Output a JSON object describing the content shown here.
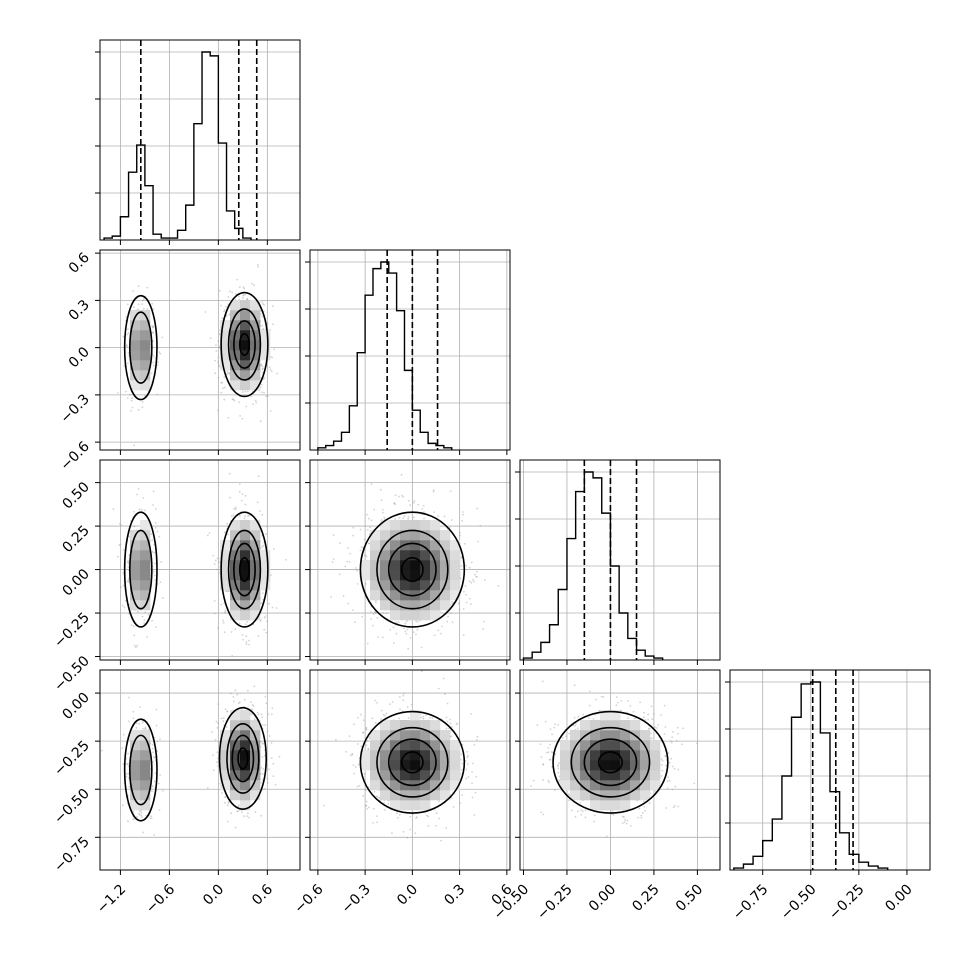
{
  "chart_data": {
    "type": "corner",
    "grid": true,
    "scatter_color": "#9e9e9e",
    "line_color": "#000000",
    "params": [
      {
        "range": [
          -1.45,
          1.0
        ],
        "ticks": [
          -1.2,
          -0.6,
          0.0,
          0.6
        ],
        "tick_labels": [
          "−1.2",
          "−0.6",
          "0.0",
          "0.6"
        ]
      },
      {
        "range": [
          -0.65,
          0.62
        ],
        "ticks": [
          -0.6,
          -0.3,
          0.0,
          0.3,
          0.6
        ],
        "tick_labels": [
          "−0.6",
          "−0.3",
          "0.0",
          "0.3",
          "0.6"
        ]
      },
      {
        "range": [
          -0.52,
          0.63
        ],
        "ticks": [
          -0.5,
          -0.25,
          0.0,
          0.25,
          0.5
        ],
        "tick_labels": [
          "−0.50",
          "−0.25",
          "0.00",
          "0.25",
          "0.50"
        ]
      },
      {
        "range": [
          -0.92,
          0.12
        ],
        "ticks": [
          -0.75,
          -0.5,
          -0.25,
          0.0
        ],
        "tick_labels": [
          "−0.75",
          "−0.50",
          "−0.25",
          "0.00"
        ]
      }
    ],
    "histograms": [
      {
        "edges_min": -1.4,
        "bin_width": 0.1,
        "counts": [
          1,
          2,
          12,
          35,
          49,
          28,
          3,
          1,
          1,
          5,
          18,
          60,
          97,
          95,
          50,
          15,
          6,
          1
        ],
        "quantile_lines": [
          -0.95,
          0.25,
          0.47
        ]
      },
      {
        "edges_min": -0.6,
        "bin_width": 0.05,
        "counts": [
          1,
          2,
          4,
          8,
          20,
          44,
          70,
          82,
          85,
          80,
          63,
          36,
          18,
          8,
          3,
          2,
          1
        ],
        "quantile_lines": [
          -0.16,
          0.0,
          0.16
        ]
      },
      {
        "edges_min": -0.5,
        "bin_width": 0.05,
        "counts": [
          1,
          4,
          9,
          18,
          36,
          62,
          86,
          96,
          93,
          75,
          48,
          24,
          11,
          5,
          2,
          1
        ],
        "quantile_lines": [
          -0.15,
          0.0,
          0.15
        ]
      },
      {
        "edges_min": -0.9,
        "bin_width": 0.05,
        "counts": [
          1,
          3,
          7,
          15,
          26,
          48,
          78,
          95,
          96,
          70,
          40,
          19,
          8,
          4,
          2,
          1
        ],
        "quantile_lines": [
          -0.49,
          -0.37,
          -0.28
        ]
      }
    ],
    "joint_clusters": {
      "1,0": [
        {
          "cx": -0.95,
          "cy": 0.0,
          "sx": 0.09,
          "sy": 0.15,
          "w": 0.3
        },
        {
          "cx": 0.32,
          "cy": 0.02,
          "sx": 0.13,
          "sy": 0.15,
          "w": 0.7
        }
      ],
      "2,0": [
        {
          "cx": -0.95,
          "cy": 0.0,
          "sx": 0.09,
          "sy": 0.15,
          "w": 0.3
        },
        {
          "cx": 0.32,
          "cy": 0.0,
          "sx": 0.13,
          "sy": 0.15,
          "w": 0.7
        }
      ],
      "2,1": [
        {
          "cx": 0.0,
          "cy": 0.0,
          "sx": 0.15,
          "sy": 0.15,
          "w": 1.0
        }
      ],
      "3,0": [
        {
          "cx": -0.95,
          "cy": -0.4,
          "sx": 0.09,
          "sy": 0.12,
          "w": 0.3
        },
        {
          "cx": 0.3,
          "cy": -0.34,
          "sx": 0.13,
          "sy": 0.12,
          "w": 0.7
        }
      ],
      "3,1": [
        {
          "cx": 0.0,
          "cy": -0.36,
          "sx": 0.15,
          "sy": 0.12,
          "w": 1.0
        }
      ],
      "3,2": [
        {
          "cx": 0.0,
          "cy": -0.36,
          "sx": 0.15,
          "sy": 0.12,
          "w": 1.0
        }
      ]
    }
  }
}
